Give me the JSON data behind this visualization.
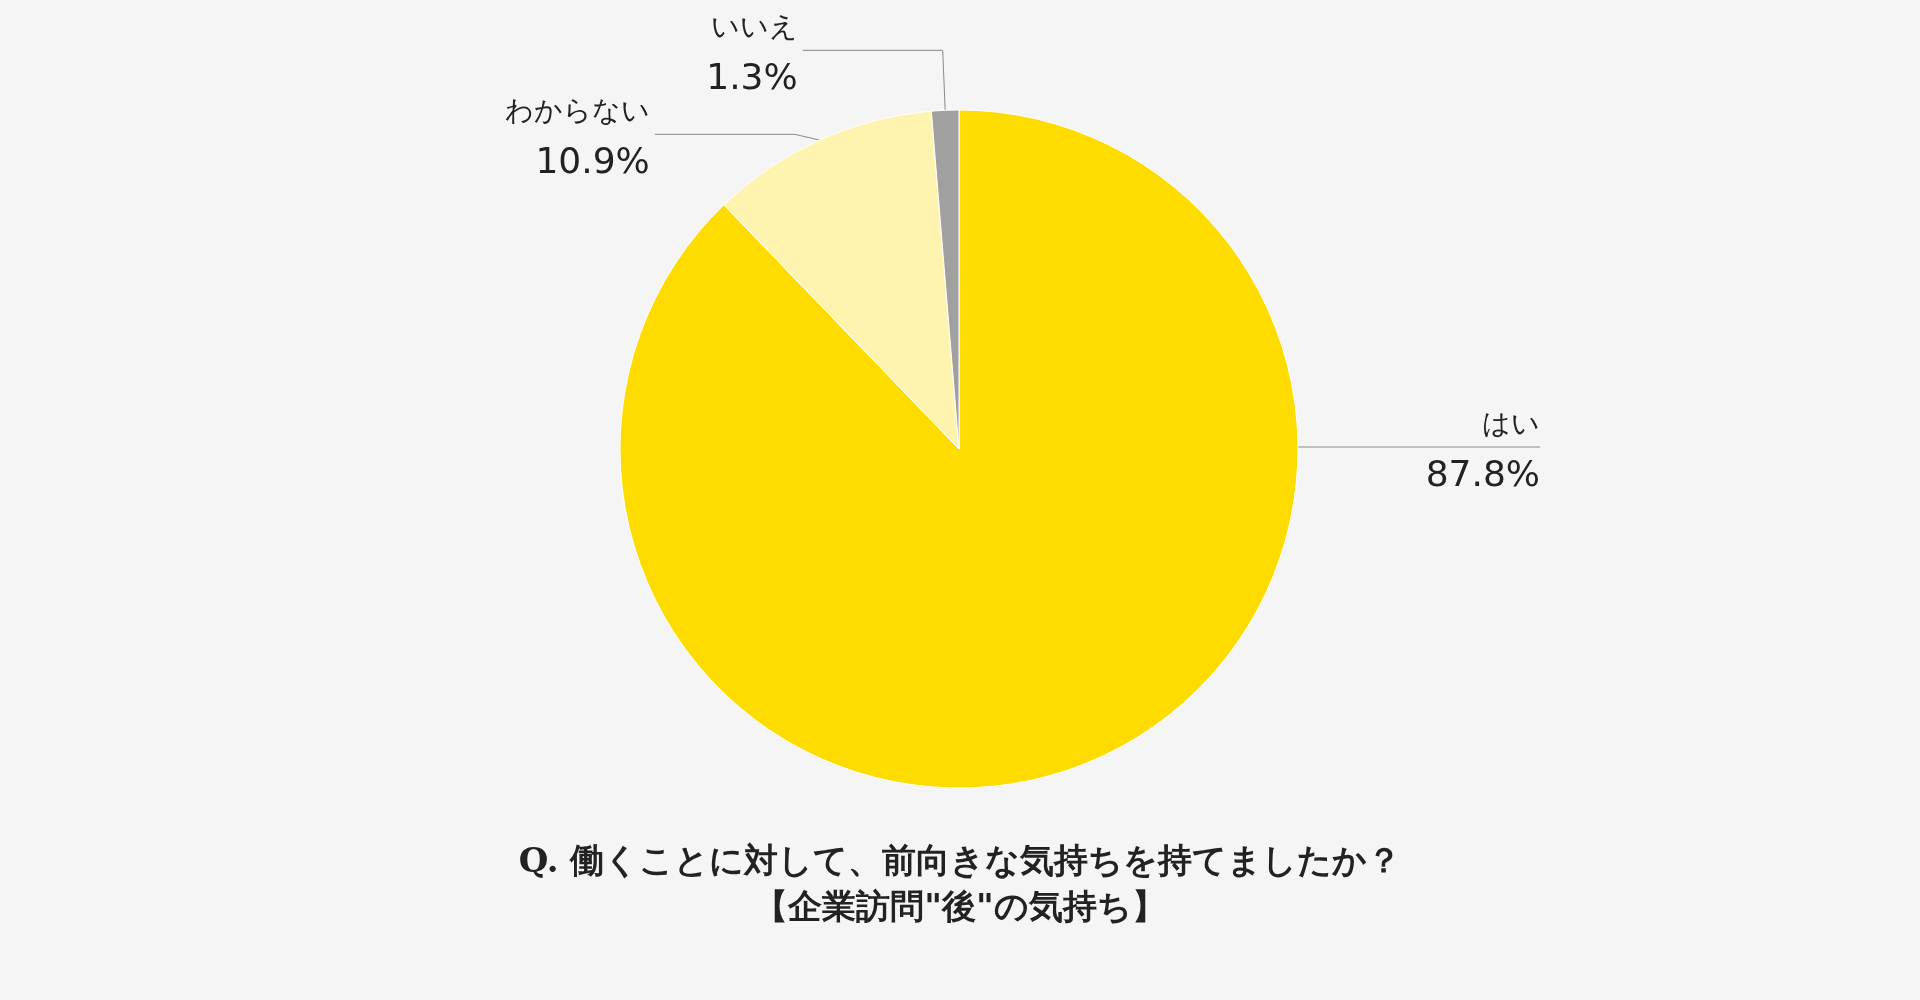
{
  "chart_data": {
    "type": "pie",
    "title": "Q. 働くことに対して、前向きな気持ちを持てましたか？",
    "subtitle": "【企業訪問\"後\"の気持ち】",
    "categories": [
      "はい",
      "わからない",
      "いいえ"
    ],
    "values": [
      87.8,
      10.9,
      1.3
    ],
    "value_labels": [
      "87.8%",
      "10.9%",
      "1.3%"
    ],
    "colors": [
      "#ffdc00",
      "#fff3b0",
      "#a0a0a0"
    ],
    "legend": false
  }
}
